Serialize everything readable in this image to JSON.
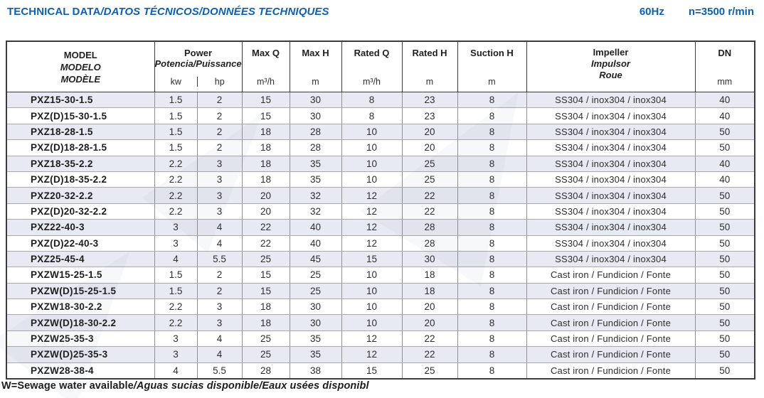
{
  "page": {
    "title_main": "TECHNICAL DATA",
    "title_i18n": "/DATOS TÉCNICOS/DONNÉES TECHNIQUES",
    "frequency": "60Hz",
    "speed": "n=3500 r/min",
    "footnote_main": "W=Sewage water available",
    "footnote_i18n": "/Aguas sucias disponible/Eaux usées disponibl"
  },
  "colors": {
    "accent_blue": "#0d60b2",
    "row_shade": "#e8eaf3",
    "border_dark": "#3c3c3c",
    "border_light": "#8f8f94"
  },
  "table": {
    "header": {
      "model": [
        "MODEL",
        "MODELO",
        "MODÈLE"
      ],
      "power": {
        "label": "Power",
        "label_i18n": "Potencia/Puissance",
        "unit_kw": "kw",
        "unit_hp": "hp"
      },
      "max_q": {
        "label": "Max Q",
        "unit": "m³/h"
      },
      "max_h": {
        "label": "Max H",
        "unit": "m"
      },
      "rated_q": {
        "label": "Rated Q",
        "unit": "m³/h"
      },
      "rated_h": {
        "label": "Rated H",
        "unit": "m"
      },
      "suction_h": {
        "label": "Suction H",
        "unit": "m"
      },
      "impeller": [
        "Impeller",
        "Impulsor",
        "Roue"
      ],
      "dn": {
        "label": "DN",
        "unit": "mm"
      }
    },
    "rows": [
      {
        "model": "PXZ15-30-1.5",
        "kw": "1.5",
        "hp": "2",
        "max_q": "15",
        "max_h": "30",
        "rated_q": "8",
        "rated_h": "23",
        "suction_h": "8",
        "impeller": "SS304 / inox304 / inox304",
        "dn": "40"
      },
      {
        "model": "PXZ(D)15-30-1.5",
        "kw": "1.5",
        "hp": "2",
        "max_q": "15",
        "max_h": "30",
        "rated_q": "8",
        "rated_h": "23",
        "suction_h": "8",
        "impeller": "SS304 / inox304 / inox304",
        "dn": "40"
      },
      {
        "model": "PXZ18-28-1.5",
        "kw": "1.5",
        "hp": "2",
        "max_q": "18",
        "max_h": "28",
        "rated_q": "10",
        "rated_h": "20",
        "suction_h": "8",
        "impeller": "SS304 / inox304 / inox304",
        "dn": "50"
      },
      {
        "model": "PXZ(D)18-28-1.5",
        "kw": "1.5",
        "hp": "2",
        "max_q": "18",
        "max_h": "28",
        "rated_q": "10",
        "rated_h": "20",
        "suction_h": "8",
        "impeller": "SS304 / inox304 / inox304",
        "dn": "50"
      },
      {
        "model": "PXZ18-35-2.2",
        "kw": "2.2",
        "hp": "3",
        "max_q": "18",
        "max_h": "35",
        "rated_q": "10",
        "rated_h": "25",
        "suction_h": "8",
        "impeller": "SS304 / inox304 / inox304",
        "dn": "40"
      },
      {
        "model": "PXZ(D)18-35-2.2",
        "kw": "2.2",
        "hp": "3",
        "max_q": "18",
        "max_h": "35",
        "rated_q": "10",
        "rated_h": "25",
        "suction_h": "8",
        "impeller": "SS304 / inox304 / inox304",
        "dn": "40"
      },
      {
        "model": "PXZ20-32-2.2",
        "kw": "2.2",
        "hp": "3",
        "max_q": "20",
        "max_h": "32",
        "rated_q": "12",
        "rated_h": "22",
        "suction_h": "8",
        "impeller": "SS304 / inox304 / inox304",
        "dn": "50"
      },
      {
        "model": "PXZ(D)20-32-2.2",
        "kw": "2.2",
        "hp": "3",
        "max_q": "20",
        "max_h": "32",
        "rated_q": "12",
        "rated_h": "22",
        "suction_h": "8",
        "impeller": "SS304 / inox304 / inox304",
        "dn": "50"
      },
      {
        "model": "PXZ22-40-3",
        "kw": "3",
        "hp": "4",
        "max_q": "22",
        "max_h": "40",
        "rated_q": "12",
        "rated_h": "28",
        "suction_h": "8",
        "impeller": "SS304 / inox304 / inox304",
        "dn": "50"
      },
      {
        "model": "PXZ(D)22-40-3",
        "kw": "3",
        "hp": "4",
        "max_q": "22",
        "max_h": "40",
        "rated_q": "12",
        "rated_h": "28",
        "suction_h": "8",
        "impeller": "SS304 / inox304 / inox304",
        "dn": "50"
      },
      {
        "model": "PXZ25-45-4",
        "kw": "4",
        "hp": "5.5",
        "max_q": "25",
        "max_h": "45",
        "rated_q": "15",
        "rated_h": "30",
        "suction_h": "8",
        "impeller": "SS304 / inox304 / inox304",
        "dn": "50"
      },
      {
        "model": "PXZW15-25-1.5",
        "kw": "1.5",
        "hp": "2",
        "max_q": "15",
        "max_h": "25",
        "rated_q": "10",
        "rated_h": "18",
        "suction_h": "8",
        "impeller": "Cast iron / Fundicion / Fonte",
        "dn": "50"
      },
      {
        "model": "PXZW(D)15-25-1.5",
        "kw": "1.5",
        "hp": "2",
        "max_q": "15",
        "max_h": "25",
        "rated_q": "10",
        "rated_h": "18",
        "suction_h": "8",
        "impeller": "Cast iron / Fundicion / Fonte",
        "dn": "50"
      },
      {
        "model": "PXZW18-30-2.2",
        "kw": "2.2",
        "hp": "3",
        "max_q": "18",
        "max_h": "30",
        "rated_q": "10",
        "rated_h": "20",
        "suction_h": "8",
        "impeller": "Cast iron / Fundicion / Fonte",
        "dn": "50"
      },
      {
        "model": "PXZW(D)18-30-2.2",
        "kw": "2.2",
        "hp": "3",
        "max_q": "18",
        "max_h": "30",
        "rated_q": "10",
        "rated_h": "20",
        "suction_h": "8",
        "impeller": "Cast iron / Fundicion / Fonte",
        "dn": "50"
      },
      {
        "model": "PXZW25-35-3",
        "kw": "3",
        "hp": "4",
        "max_q": "25",
        "max_h": "35",
        "rated_q": "12",
        "rated_h": "22",
        "suction_h": "8",
        "impeller": "Cast iron / Fundicion / Fonte",
        "dn": "50"
      },
      {
        "model": "PXZW(D)25-35-3",
        "kw": "3",
        "hp": "4",
        "max_q": "25",
        "max_h": "35",
        "rated_q": "12",
        "rated_h": "22",
        "suction_h": "8",
        "impeller": "Cast iron / Fundicion / Fonte",
        "dn": "50"
      },
      {
        "model": "PXZW28-38-4",
        "kw": "4",
        "hp": "5.5",
        "max_q": "28",
        "max_h": "38",
        "rated_q": "15",
        "rated_h": "25",
        "suction_h": "8",
        "impeller": "Cast iron / Fundicion / Fonte",
        "dn": "50"
      }
    ]
  }
}
